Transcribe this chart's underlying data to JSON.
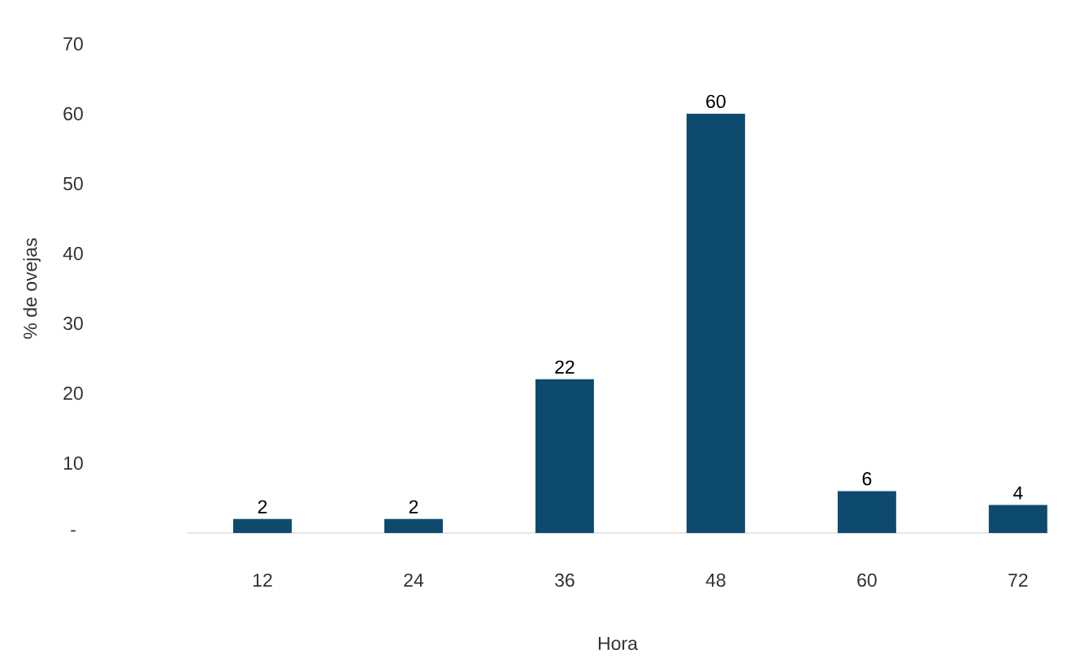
{
  "chart_data": {
    "type": "bar",
    "xlabel": "Hora",
    "ylabel": "% de ovejas",
    "categories": [
      "12",
      "24",
      "36",
      "48",
      "60",
      "72"
    ],
    "values": [
      2,
      2,
      22,
      60,
      6,
      4
    ],
    "color": "#0e4a6e",
    "ylim": [
      0,
      70
    ],
    "yticks": [
      {
        "value": 0,
        "label": "-"
      },
      10,
      20,
      30,
      40,
      50,
      60,
      70
    ],
    "data_labels": true
  }
}
